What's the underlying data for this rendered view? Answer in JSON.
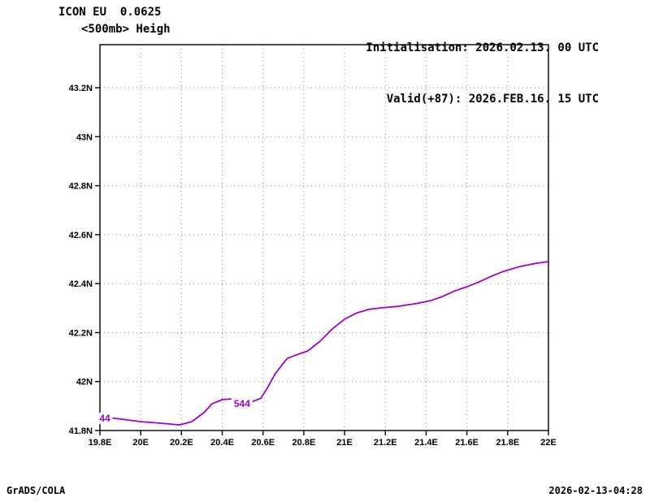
{
  "header": {
    "model_line": "ICON EU  0.0625",
    "field_line": "<500mb> Heigh",
    "init_line": "Initialisation: 2026.02.13. 00 UTC",
    "valid_line": "Valid(+87): 2026.FEB.16. 15 UTC"
  },
  "footer": {
    "left": "GrADS/COLA",
    "right": "2026-02-13-04:28"
  },
  "chart_data": {
    "type": "line",
    "chart_kind": "geopotential-height-contour",
    "title": "",
    "xlabel": "",
    "ylabel": "",
    "xlim": [
      19.8,
      22.0
    ],
    "ylim": [
      41.8,
      43.376
    ],
    "grid": "dotted",
    "x_ticks": [
      {
        "label": "19.8E",
        "value": 19.8
      },
      {
        "label": "20E",
        "value": 20.0
      },
      {
        "label": "20.2E",
        "value": 20.2
      },
      {
        "label": "20.4E",
        "value": 20.4
      },
      {
        "label": "20.6E",
        "value": 20.6
      },
      {
        "label": "20.8E",
        "value": 20.8
      },
      {
        "label": "21E",
        "value": 21.0
      },
      {
        "label": "21.2E",
        "value": 21.2
      },
      {
        "label": "21.4E",
        "value": 21.4
      },
      {
        "label": "21.6E",
        "value": 21.6
      },
      {
        "label": "21.8E",
        "value": 21.8
      },
      {
        "label": "22E",
        "value": 22.0
      }
    ],
    "y_ticks": [
      {
        "label": "41.8N",
        "value": 41.8
      },
      {
        "label": "42N",
        "value": 42.0
      },
      {
        "label": "42.2N",
        "value": 42.2
      },
      {
        "label": "42.4N",
        "value": 42.4
      },
      {
        "label": "42.6N",
        "value": 42.6
      },
      {
        "label": "42.8N",
        "value": 42.8
      },
      {
        "label": "43N",
        "value": 43.0
      },
      {
        "label": "43.2N",
        "value": 43.2
      }
    ],
    "series": [
      {
        "name": "544",
        "contour_value": 544,
        "color": "#a000c8",
        "points": [
          [
            19.8,
            41.86
          ],
          [
            19.85,
            41.852
          ],
          [
            19.91,
            41.846
          ],
          [
            20.0,
            41.836
          ],
          [
            20.1,
            41.83
          ],
          [
            20.19,
            41.823
          ],
          [
            20.25,
            41.836
          ],
          [
            20.31,
            41.873
          ],
          [
            20.35,
            41.909
          ],
          [
            20.4,
            41.926
          ],
          [
            20.44,
            41.929
          ],
          [
            20.49,
            41.922
          ],
          [
            20.55,
            41.919
          ],
          [
            20.59,
            41.932
          ],
          [
            20.62,
            41.972
          ],
          [
            20.66,
            42.032
          ],
          [
            20.7,
            42.075
          ],
          [
            20.72,
            42.095
          ],
          [
            20.76,
            42.108
          ],
          [
            20.82,
            42.125
          ],
          [
            20.88,
            42.165
          ],
          [
            20.94,
            42.215
          ],
          [
            21.0,
            42.255
          ],
          [
            21.06,
            42.28
          ],
          [
            21.12,
            42.295
          ],
          [
            21.18,
            42.301
          ],
          [
            21.26,
            42.307
          ],
          [
            21.34,
            42.317
          ],
          [
            21.42,
            42.33
          ],
          [
            21.48,
            42.347
          ],
          [
            21.54,
            42.37
          ],
          [
            21.6,
            42.387
          ],
          [
            21.66,
            42.407
          ],
          [
            21.72,
            42.43
          ],
          [
            21.78,
            42.45
          ],
          [
            21.86,
            42.47
          ],
          [
            21.94,
            42.483
          ],
          [
            22.0,
            42.49
          ]
        ],
        "labels": [
          {
            "text": "544",
            "lon": 20.497,
            "lat": 41.909
          },
          {
            "text": "44",
            "lon": 19.824,
            "lat": 41.85
          }
        ]
      }
    ]
  }
}
